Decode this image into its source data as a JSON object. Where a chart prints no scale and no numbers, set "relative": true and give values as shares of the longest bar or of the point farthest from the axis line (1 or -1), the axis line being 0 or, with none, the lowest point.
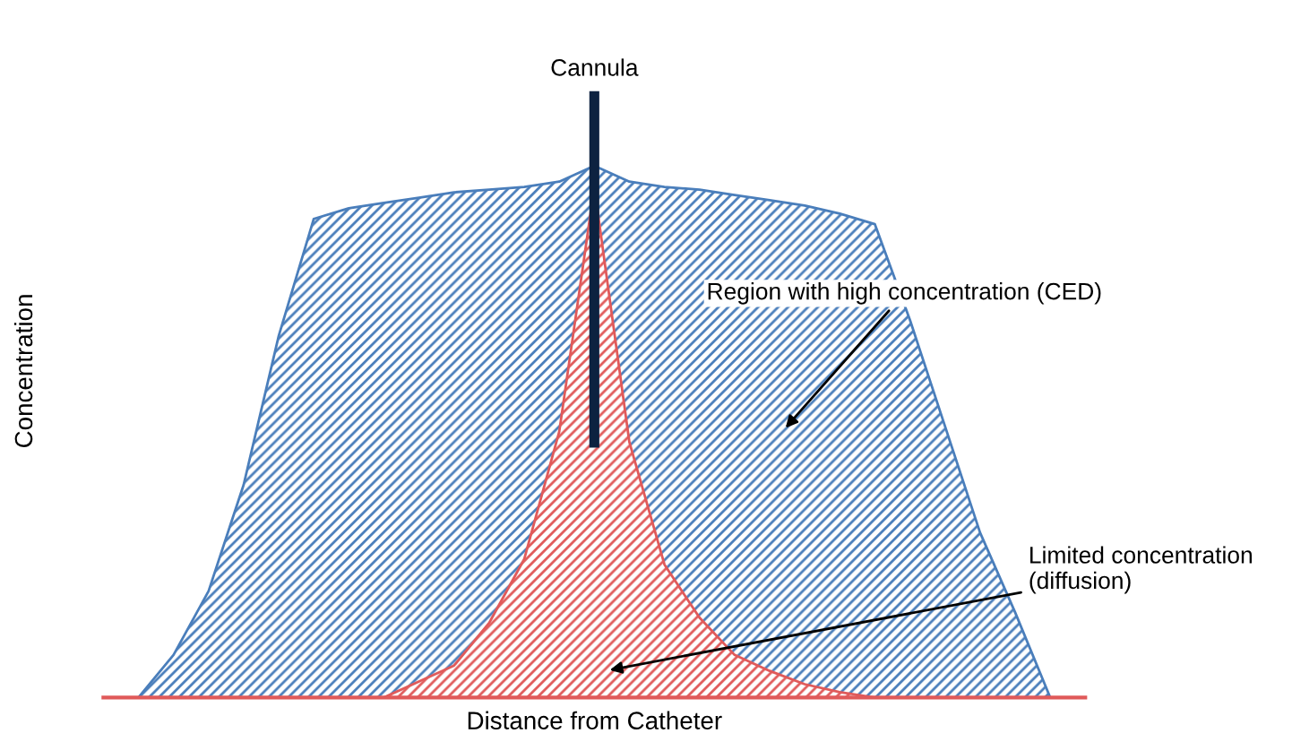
{
  "chart_data": {
    "type": "area",
    "relative": true,
    "xlabel": "Distance from Catheter",
    "ylabel": "Concentration",
    "annotations": [
      "Cannula",
      "Region with high concentration (CED)",
      "Limited concentration (diffusion)"
    ],
    "categories": [
      null,
      null,
      null,
      null,
      null,
      null,
      null,
      null,
      null,
      null,
      null,
      null,
      null,
      null,
      null,
      null,
      null,
      null,
      null,
      null,
      null,
      null,
      null,
      null,
      null,
      null,
      null
    ],
    "series": [
      {
        "color": "#4a7ebb",
        "values": [
          0.0,
          0.08,
          0.2,
          0.4,
          0.68,
          0.9,
          0.92,
          0.93,
          0.94,
          0.95,
          0.955,
          0.96,
          0.97,
          1.0,
          0.97,
          0.96,
          0.955,
          0.945,
          0.935,
          0.925,
          0.91,
          0.89,
          0.71,
          0.51,
          0.31,
          0.16,
          0.0
        ]
      },
      {
        "color": "#e05a5a",
        "values": [
          null,
          null,
          null,
          null,
          null,
          null,
          null,
          0.0,
          0.03,
          0.06,
          0.14,
          0.26,
          0.5,
          0.96,
          0.48,
          0.25,
          0.15,
          0.08,
          0.05,
          0.025,
          0.01,
          0.0,
          null,
          null,
          null,
          null,
          null
        ]
      }
    ],
    "grid": false,
    "legend": false
  }
}
